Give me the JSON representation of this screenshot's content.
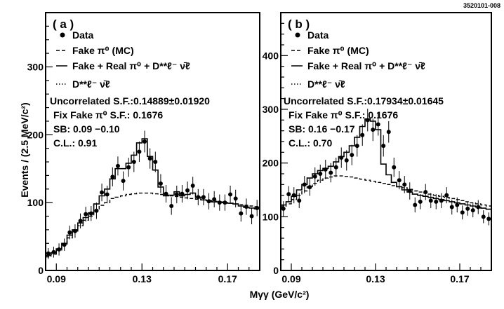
{
  "figure_id": "3520101-008",
  "xlabel": "Mγγ (GeV/c²)",
  "ylabel": "Events / (2.5 MeV/c²)",
  "chart_data": [
    {
      "panel": "( a )",
      "type": "line",
      "xlim": [
        0.085,
        0.185
      ],
      "ylim": [
        0,
        380
      ],
      "x_ticks": [
        0.09,
        0.13,
        0.17
      ],
      "y_ticks": [
        0,
        100,
        200,
        300
      ],
      "legend": [
        "Data",
        "Fake π⁰ (MC)",
        "Fake + Real π⁰ + D**ℓ⁻ ν̄ℓ",
        "D**ℓ⁻ ν̄ℓ"
      ],
      "annotations": [
        "Uncorrelated S.F.:0.14889±0.01920",
        "Fix Fake π⁰ S.F.: 0.1676",
        "SB: 0.09 −0.10",
        "C.L.: 0.91"
      ],
      "data_x": [
        0.08625,
        0.08875,
        0.09125,
        0.09375,
        0.09625,
        0.09875,
        0.10125,
        0.10375,
        0.10625,
        0.10875,
        0.11125,
        0.11375,
        0.11625,
        0.11875,
        0.12125,
        0.12375,
        0.12625,
        0.12875,
        0.13125,
        0.13375,
        0.13625,
        0.13875,
        0.14125,
        0.14375,
        0.14625,
        0.14875,
        0.15125,
        0.15375,
        0.15625,
        0.15875,
        0.16125,
        0.16375,
        0.16625,
        0.16875,
        0.17125,
        0.17375,
        0.17625,
        0.17875,
        0.18125,
        0.18375
      ],
      "data_y": [
        25,
        27,
        31,
        38,
        56,
        58,
        73,
        83,
        84,
        88,
        115,
        112,
        138,
        154,
        132,
        152,
        160,
        175,
        190,
        165,
        160,
        128,
        113,
        95,
        112,
        113,
        118,
        125,
        108,
        108,
        102,
        105,
        100,
        100,
        112,
        106,
        84,
        94,
        80,
        92
      ],
      "data_err": [
        8,
        8,
        9,
        9,
        10,
        10,
        11,
        11,
        11,
        12,
        13,
        13,
        14,
        14,
        14,
        14,
        15,
        15,
        16,
        15,
        15,
        14,
        13,
        13,
        13,
        13,
        13,
        13,
        12,
        12,
        12,
        12,
        12,
        12,
        13,
        13,
        12,
        12,
        12,
        12
      ],
      "total_fit": [
        22,
        26,
        32,
        40,
        52,
        60,
        70,
        78,
        85,
        98,
        110,
        120,
        135,
        150,
        150,
        158,
        170,
        188,
        194,
        168,
        148,
        123,
        110,
        111,
        116,
        110,
        112,
        114,
        108,
        104,
        103,
        101,
        101,
        100,
        99,
        98,
        95,
        93,
        92,
        91
      ],
      "fake_pi0_mc": [
        20,
        24,
        30,
        38,
        48,
        58,
        66,
        74,
        80,
        88,
        96,
        100,
        106,
        108,
        110,
        112,
        113,
        114,
        114,
        114,
        113,
        112,
        111,
        110,
        109,
        108,
        107,
        106,
        105,
        104,
        103,
        102,
        101,
        100,
        99,
        98,
        97,
        96,
        95,
        94
      ]
    },
    {
      "panel": "( b )",
      "type": "line",
      "xlim": [
        0.085,
        0.185
      ],
      "ylim": [
        0,
        480
      ],
      "x_ticks": [
        0.09,
        0.13,
        0.17
      ],
      "y_ticks": [
        0,
        100,
        200,
        300,
        400
      ],
      "legend": [
        "Data",
        "Fake π⁰ (MC)",
        "Fake + Real π⁰ + D**ℓ⁻ ν̄ℓ",
        "D**ℓ⁻ ν̄ℓ"
      ],
      "annotations": [
        "Uncorrelated S.F.:0.17934±0.01645",
        "Fix Fake π⁰ S.F.: 0.1676",
        "SB: 0.16 −0.17",
        "C.L.: 0.70"
      ],
      "data_x": [
        0.08625,
        0.08875,
        0.09125,
        0.09375,
        0.09625,
        0.09875,
        0.10125,
        0.10375,
        0.10625,
        0.10875,
        0.11125,
        0.11375,
        0.11625,
        0.11875,
        0.12125,
        0.12375,
        0.12625,
        0.12875,
        0.13125,
        0.13375,
        0.13625,
        0.13875,
        0.14125,
        0.14375,
        0.14625,
        0.14875,
        0.15125,
        0.15375,
        0.15625,
        0.15875,
        0.16125,
        0.16375,
        0.16625,
        0.16875,
        0.17125,
        0.17375,
        0.17625,
        0.17875,
        0.18125,
        0.18375
      ],
      "data_y": [
        115,
        142,
        140,
        130,
        160,
        155,
        175,
        180,
        188,
        182,
        192,
        210,
        205,
        215,
        232,
        252,
        280,
        262,
        272,
        232,
        258,
        192,
        168,
        160,
        148,
        122,
        128,
        146,
        130,
        128,
        130,
        140,
        118,
        122,
        108,
        115,
        112,
        118,
        100,
        96
      ],
      "data_err": [
        14,
        15,
        15,
        14,
        16,
        16,
        17,
        17,
        18,
        18,
        18,
        19,
        19,
        19,
        20,
        20,
        21,
        21,
        21,
        20,
        20,
        18,
        17,
        16,
        16,
        14,
        14,
        15,
        14,
        14,
        14,
        15,
        14,
        14,
        13,
        13,
        13,
        13,
        12,
        12
      ],
      "total_fit": [
        122,
        128,
        138,
        150,
        160,
        172,
        180,
        186,
        190,
        194,
        202,
        212,
        220,
        232,
        248,
        268,
        282,
        278,
        262,
        198,
        178,
        164,
        156,
        150,
        146,
        142,
        140,
        138,
        136,
        134,
        132,
        130,
        128,
        126,
        124,
        122,
        120,
        118,
        116,
        114
      ],
      "fake_pi0_mc": [
        118,
        124,
        132,
        140,
        148,
        156,
        162,
        168,
        172,
        174,
        176,
        176,
        175,
        174,
        172,
        170,
        168,
        166,
        164,
        162,
        160,
        158,
        156,
        154,
        151,
        148,
        146,
        144,
        142,
        140,
        138,
        136,
        134,
        132,
        130,
        128,
        126,
        124,
        122,
        120
      ]
    }
  ]
}
